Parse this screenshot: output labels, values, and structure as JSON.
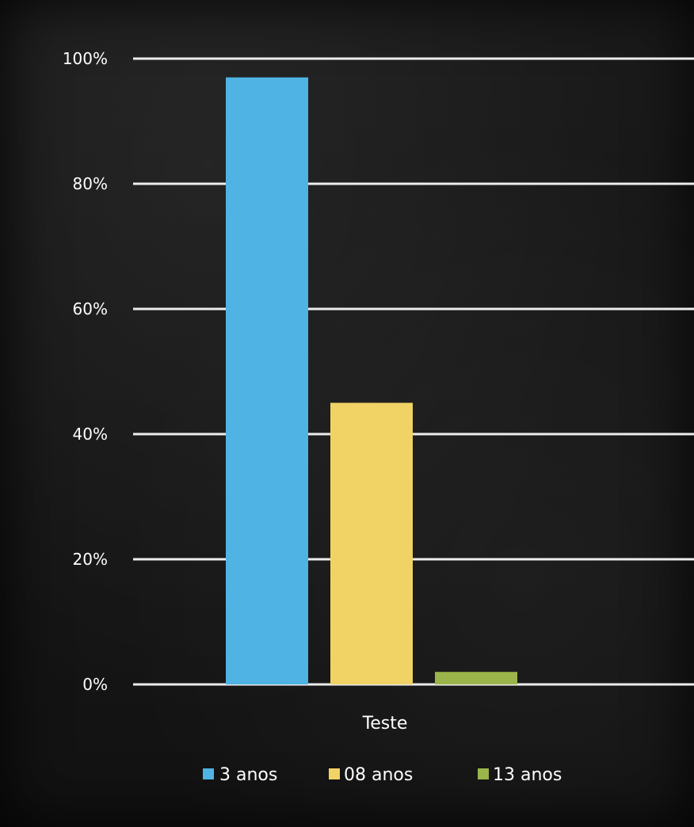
{
  "chart_data": {
    "type": "bar",
    "categories": [
      "Teste"
    ],
    "series": [
      {
        "name": "3 anos",
        "values": [
          97
        ],
        "color": "#4fb3e3"
      },
      {
        "name": "08 anos",
        "values": [
          45
        ],
        "color": "#f1d264"
      },
      {
        "name": "13 anos",
        "values": [
          2
        ],
        "color": "#9bb54a"
      }
    ],
    "ylim": [
      0,
      100
    ],
    "yticks": [
      0,
      20,
      40,
      60,
      80,
      100
    ],
    "ytick_labels": [
      "0%",
      "20%",
      "40%",
      "60%",
      "80%",
      "100%"
    ],
    "grid": true,
    "legend_position": "bottom",
    "background": "#141414",
    "grid_color": "#ffffff",
    "text_color": "#ffffff"
  }
}
